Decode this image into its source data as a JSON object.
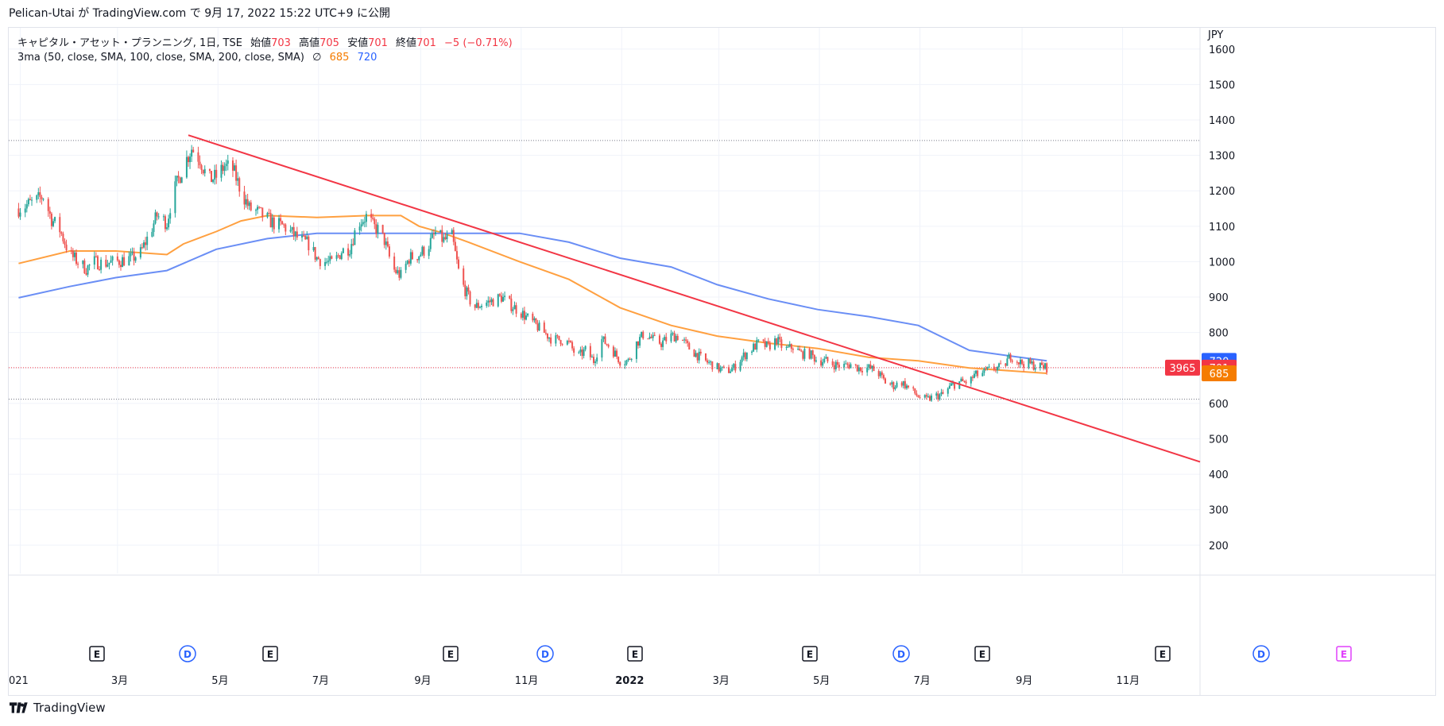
{
  "header": {
    "text": "Pelican-Utai が TradingView.com で 9月 17, 2022 15:22 UTC+9 に公開"
  },
  "legend": {
    "symbol": "キャピタル・アセット・プランニング, 1日, TSE",
    "open_label": "始値",
    "open_value": "703",
    "high_label": "高値",
    "high_value": "705",
    "low_label": "安値",
    "low_value": "701",
    "close_label": "終値",
    "close_value": "701",
    "change": "−5 (−0.71%)",
    "indicator": "3ma (50, close, SMA, 100, close, SMA, 200, close, SMA)",
    "indicator_symbol": "∅",
    "ma_orange": "685",
    "ma_blue": "720"
  },
  "price_axis": {
    "currency": "JPY",
    "badge_blue": "720",
    "badge_price": "701",
    "badge_countdown": "3965",
    "badge_orange": "685"
  },
  "events": [
    {
      "label": "E",
      "type": "earnings"
    },
    {
      "label": "D",
      "type": "dividend"
    },
    {
      "label": "E",
      "type": "earnings"
    },
    {
      "label": "E",
      "type": "earnings"
    },
    {
      "label": "D",
      "type": "dividend"
    },
    {
      "label": "E",
      "type": "earnings"
    },
    {
      "label": "E",
      "type": "earnings"
    },
    {
      "label": "D",
      "type": "dividend"
    },
    {
      "label": "E",
      "type": "earnings"
    },
    {
      "label": "E",
      "type": "earnings"
    },
    {
      "label": "D",
      "type": "dividend"
    },
    {
      "label": "E",
      "type": "future-earnings"
    }
  ],
  "footer": {
    "brand": "TradingView"
  },
  "colors": {
    "up": "#26a69a",
    "down": "#ef5350",
    "ma_orange": "#ffa040",
    "ma_blue": "#6a8ef5",
    "trendline": "#f23645"
  },
  "chart_data": {
    "type": "candlestick",
    "y_unit": "JPY",
    "ylim": [
      120,
      1660
    ],
    "y_ticks": [
      200,
      300,
      400,
      500,
      600,
      700,
      800,
      900,
      1000,
      1100,
      1200,
      1300,
      1400,
      1500,
      1600
    ],
    "x_tick_labels": [
      "021",
      "3月",
      "5月",
      "7月",
      "9月",
      "11月",
      "2022",
      "3月",
      "5月",
      "7月",
      "9月",
      "11月"
    ],
    "x_tick_dates": [
      "2021-01-01",
      "2021-03-01",
      "2021-05-01",
      "2021-07-01",
      "2021-09-01",
      "2021-11-01",
      "2022-01-01",
      "2022-03-01",
      "2022-05-01",
      "2022-07-01",
      "2022-09-01",
      "2022-11-01"
    ],
    "last_bar_date": "2022-09-16",
    "horizontal_lines": [
      1342,
      612
    ],
    "current_price_line": 701,
    "trendline": {
      "from": {
        "date": "2021-04-13",
        "price": 1357
      },
      "to": {
        "date": "2022-12-18",
        "price": 435
      }
    },
    "close_series": {
      "dates": [
        "2020-12-31",
        "2021-01-05",
        "2021-01-10",
        "2021-01-15",
        "2021-01-20",
        "2021-01-25",
        "2021-01-31",
        "2021-02-05",
        "2021-02-10",
        "2021-02-15",
        "2021-02-20",
        "2021-02-28",
        "2021-03-05",
        "2021-03-10",
        "2021-03-15",
        "2021-03-20",
        "2021-03-25",
        "2021-03-31",
        "2021-04-03",
        "2021-04-06",
        "2021-04-10",
        "2021-04-15",
        "2021-04-20",
        "2021-04-25",
        "2021-04-30",
        "2021-05-05",
        "2021-05-10",
        "2021-05-15",
        "2021-05-20",
        "2021-05-25",
        "2021-05-31",
        "2021-06-05",
        "2021-06-10",
        "2021-06-15",
        "2021-06-20",
        "2021-06-25",
        "2021-06-30",
        "2021-07-05",
        "2021-07-10",
        "2021-07-15",
        "2021-07-20",
        "2021-07-25",
        "2021-07-31",
        "2021-08-03",
        "2021-08-06",
        "2021-08-10",
        "2021-08-15",
        "2021-08-20",
        "2021-08-25",
        "2021-08-31",
        "2021-09-05",
        "2021-09-10",
        "2021-09-15",
        "2021-09-20",
        "2021-09-25",
        "2021-09-30",
        "2021-10-03",
        "2021-10-08",
        "2021-10-15",
        "2021-10-20",
        "2021-10-25",
        "2021-10-31",
        "2021-11-05",
        "2021-11-10",
        "2021-11-15",
        "2021-11-20",
        "2021-11-25",
        "2021-11-30",
        "2021-12-05",
        "2021-12-10",
        "2021-12-15",
        "2021-12-20",
        "2021-12-25",
        "2021-12-31",
        "2022-01-05",
        "2022-01-10",
        "2022-01-15",
        "2022-01-20",
        "2022-01-25",
        "2022-01-31",
        "2022-02-05",
        "2022-02-10",
        "2022-02-15",
        "2022-02-20",
        "2022-02-25",
        "2022-02-28",
        "2022-03-05",
        "2022-03-10",
        "2022-03-15",
        "2022-03-20",
        "2022-03-25",
        "2022-03-31",
        "2022-04-05",
        "2022-04-10",
        "2022-04-15",
        "2022-04-20",
        "2022-04-25",
        "2022-04-30",
        "2022-05-05",
        "2022-05-10",
        "2022-05-15",
        "2022-05-20",
        "2022-05-25",
        "2022-05-31",
        "2022-06-05",
        "2022-06-10",
        "2022-06-15",
        "2022-06-20",
        "2022-06-25",
        "2022-06-30",
        "2022-07-05",
        "2022-07-10",
        "2022-07-15",
        "2022-07-20",
        "2022-07-25",
        "2022-07-31",
        "2022-08-03",
        "2022-08-06",
        "2022-08-10",
        "2022-08-15",
        "2022-08-20",
        "2022-08-25",
        "2022-08-31",
        "2022-09-05",
        "2022-09-10",
        "2022-09-16"
      ],
      "values": [
        1150,
        1160,
        1170,
        1185,
        1120,
        1090,
        1020,
        1000,
        980,
        1000,
        995,
        1000,
        1005,
        1010,
        1025,
        1075,
        1130,
        1110,
        1180,
        1220,
        1270,
        1320,
        1290,
        1230,
        1240,
        1270,
        1260,
        1200,
        1150,
        1140,
        1120,
        1105,
        1100,
        1080,
        1060,
        1050,
        1010,
        1000,
        995,
        1030,
        1040,
        1110,
        1130,
        1100,
        1090,
        1060,
        980,
        960,
        1010,
        1020,
        1040,
        1080,
        1060,
        1070,
        950,
        900,
        870,
        880,
        890,
        900,
        880,
        860,
        840,
        820,
        800,
        780,
        780,
        770,
        730,
        750,
        720,
        780,
        760,
        720,
        720,
        770,
        800,
        780,
        770,
        790,
        790,
        760,
        740,
        720,
        710,
        700,
        690,
        700,
        730,
        750,
        770,
        760,
        780,
        750,
        760,
        740,
        740,
        720,
        720,
        710,
        705,
        710,
        700,
        700,
        690,
        660,
        650,
        660,
        640,
        620,
        610,
        620,
        625,
        650,
        660,
        660,
        680,
        680,
        690,
        700,
        700,
        735,
        715,
        712,
        706,
        701
      ]
    },
    "series": [
      {
        "name": "50",
        "color": "orange",
        "dates": [
          "2020-12-31",
          "2021-01-31",
          "2021-02-28",
          "2021-03-31",
          "2021-04-10",
          "2021-04-30",
          "2021-05-15",
          "2021-05-31",
          "2021-06-30",
          "2021-07-31",
          "2021-08-20",
          "2021-08-31",
          "2021-09-15",
          "2021-09-30",
          "2021-10-31",
          "2021-11-30",
          "2021-12-31",
          "2022-01-31",
          "2022-02-28",
          "2022-03-31",
          "2022-04-30",
          "2022-05-31",
          "2022-06-30",
          "2022-07-31",
          "2022-08-31",
          "2022-09-16"
        ],
        "values": [
          995,
          1030,
          1030,
          1020,
          1050,
          1085,
          1115,
          1130,
          1125,
          1130,
          1130,
          1100,
          1080,
          1055,
          1000,
          950,
          870,
          820,
          790,
          770,
          755,
          730,
          720,
          700,
          690,
          685
        ]
      },
      {
        "name": "100",
        "color": "blue",
        "dates": [
          "2020-12-31",
          "2021-01-31",
          "2021-02-28",
          "2021-03-31",
          "2021-04-30",
          "2021-05-31",
          "2021-06-30",
          "2021-07-31",
          "2021-08-31",
          "2021-09-30",
          "2021-10-31",
          "2021-11-30",
          "2021-12-31",
          "2022-01-31",
          "2022-02-28",
          "2022-03-31",
          "2022-04-30",
          "2022-05-31",
          "2022-06-30",
          "2022-07-31",
          "2022-08-31",
          "2022-09-16"
        ],
        "values": [
          898,
          930,
          955,
          975,
          1035,
          1065,
          1080,
          1080,
          1080,
          1080,
          1080,
          1055,
          1010,
          985,
          935,
          895,
          865,
          845,
          820,
          750,
          730,
          720
        ]
      }
    ]
  }
}
